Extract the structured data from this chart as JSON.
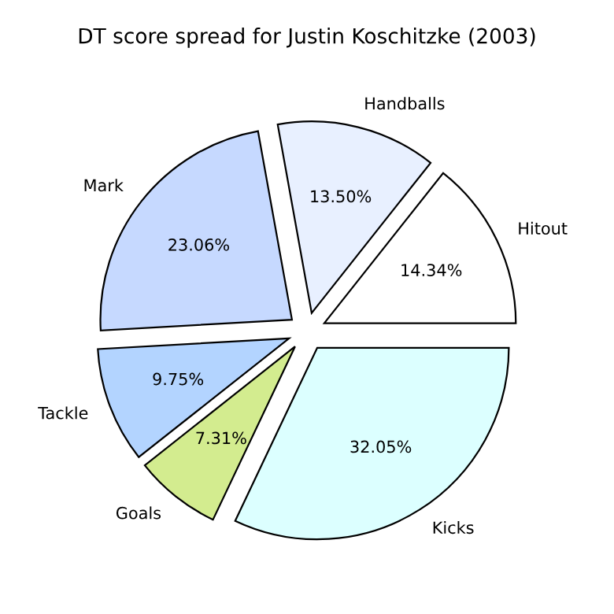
{
  "chart_data": {
    "type": "pie",
    "title": "DT score spread for Justin Koschitzke (2003)",
    "categories": [
      "Hitout",
      "Handballs",
      "Mark",
      "Tackle",
      "Goals",
      "Kicks"
    ],
    "values": [
      14.34,
      13.5,
      23.06,
      9.75,
      7.31,
      32.05
    ],
    "value_labels": [
      "14.34%",
      "13.50%",
      "23.06%",
      "9.75%",
      "7.31%",
      "32.05%"
    ],
    "colors": [
      "#ffffff",
      "#e8f0ff",
      "#c6d9ff",
      "#b3d4ff",
      "#d3ec8f",
      "#dcffff"
    ]
  }
}
